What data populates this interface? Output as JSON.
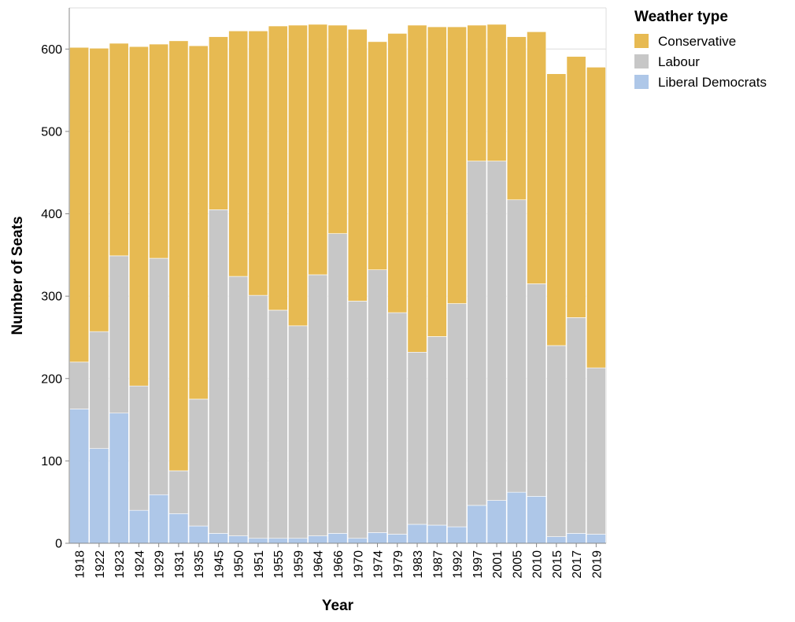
{
  "chart_data": {
    "type": "bar",
    "stacked": true,
    "xlabel": "Year",
    "ylabel": "Number of Seats",
    "ylim": [
      0,
      650
    ],
    "yticks": [
      0,
      100,
      200,
      300,
      400,
      500,
      600
    ],
    "grid": true,
    "legend_title": "Weather type",
    "legend_position": "right",
    "categories": [
      "1918",
      "1922",
      "1923",
      "1924",
      "1929",
      "1931",
      "1935",
      "1945",
      "1950",
      "1951",
      "1955",
      "1959",
      "1964",
      "1966",
      "1970",
      "1974",
      "1979",
      "1983",
      "1987",
      "1992",
      "1997",
      "2001",
      "2005",
      "2010",
      "2015",
      "2017",
      "2019"
    ],
    "series": [
      {
        "name": "Liberal Democrats",
        "color": "#aec7e8",
        "values": [
          163,
          115,
          158,
          40,
          59,
          36,
          21,
          12,
          9,
          6,
          6,
          6,
          9,
          12,
          6,
          13,
          11,
          23,
          22,
          20,
          46,
          52,
          62,
          57,
          8,
          12,
          11
        ]
      },
      {
        "name": "Labour",
        "color": "#c7c7c7",
        "values": [
          57,
          142,
          191,
          151,
          287,
          52,
          154,
          393,
          315,
          295,
          277,
          258,
          317,
          364,
          288,
          319,
          269,
          209,
          229,
          271,
          418,
          412,
          355,
          258,
          232,
          262,
          202
        ]
      },
      {
        "name": "Conservative",
        "color": "#e7ba52",
        "values": [
          382,
          344,
          258,
          412,
          260,
          522,
          429,
          210,
          298,
          321,
          345,
          365,
          304,
          253,
          330,
          277,
          339,
          397,
          376,
          336,
          165,
          166,
          198,
          306,
          330,
          317,
          365
        ]
      }
    ],
    "legend_order": [
      "Conservative",
      "Labour",
      "Liberal Democrats"
    ]
  }
}
